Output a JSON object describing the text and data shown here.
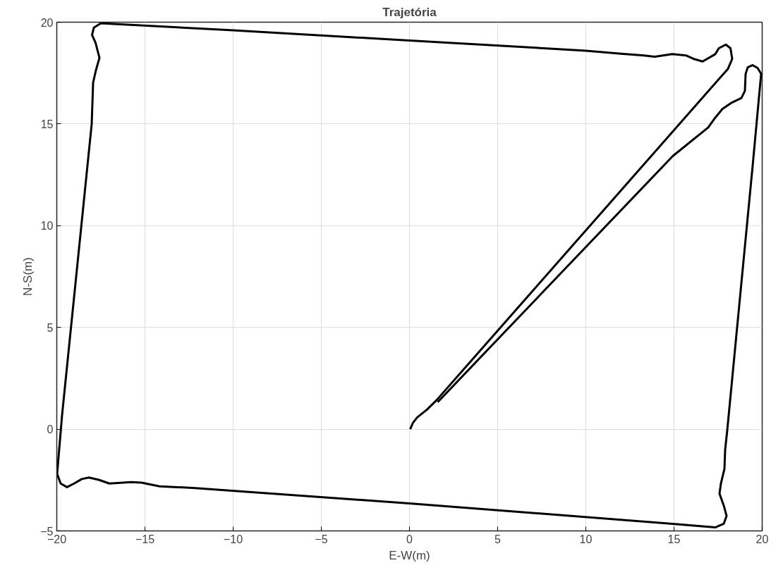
{
  "chart_data": {
    "type": "line",
    "title": "Trajetória",
    "xlabel": "E-W(m)",
    "ylabel": "N-S(m)",
    "xlim": [
      -20,
      20
    ],
    "ylim": [
      -5,
      20
    ],
    "xticks": [
      -20,
      -15,
      -10,
      -5,
      0,
      5,
      10,
      15,
      20
    ],
    "yticks": [
      -5,
      0,
      5,
      10,
      15,
      20
    ],
    "grid": true,
    "marker": "none",
    "line_style": "solid",
    "series": [
      {
        "color": "#000000",
        "x": [
          0.04,
          0.2,
          0.44,
          1.0,
          1.52,
          18.06,
          18.3,
          18.2,
          17.94,
          17.54,
          17.34,
          16.62,
          16.1,
          15.7,
          14.9,
          13.9,
          13.3,
          12.0,
          10.0,
          0.0,
          -10.0,
          -17.5,
          -17.9,
          -18.0,
          -17.8,
          -17.58,
          -17.78,
          -17.94,
          -18.02,
          -19.7,
          -19.98,
          -19.78,
          -19.42,
          -19.02,
          -18.58,
          -18.18,
          -17.62,
          -17.02,
          -15.78,
          -15.2,
          -14.17,
          -12.29,
          0.0,
          14.93,
          17.34,
          17.82,
          17.98,
          17.82,
          17.58,
          17.66,
          17.86,
          17.9,
          18.02,
          19.46,
          19.94,
          19.74,
          19.46,
          19.18,
          19.06,
          19.02,
          18.82,
          18.22,
          17.74,
          17.26,
          16.94,
          14.93,
          1.6
        ],
        "values": [
          0.0,
          0.32,
          0.58,
          0.97,
          1.41,
          17.71,
          18.2,
          18.72,
          18.9,
          18.72,
          18.43,
          18.07,
          18.2,
          18.36,
          18.43,
          18.3,
          18.36,
          18.45,
          18.6,
          19.1,
          19.6,
          19.95,
          19.73,
          19.37,
          18.98,
          18.25,
          17.64,
          17.03,
          15.0,
          0.69,
          -2.2,
          -2.67,
          -2.85,
          -2.67,
          -2.45,
          -2.38,
          -2.49,
          -2.67,
          -2.6,
          -2.63,
          -2.81,
          -2.89,
          -3.65,
          -4.65,
          -4.83,
          -4.65,
          -4.26,
          -3.75,
          -3.17,
          -2.67,
          -1.95,
          -1.01,
          -0.04,
          12.95,
          17.46,
          17.75,
          17.89,
          17.78,
          17.46,
          16.63,
          16.27,
          16.02,
          15.73,
          15.22,
          14.83,
          13.42,
          1.33
        ]
      }
    ]
  }
}
